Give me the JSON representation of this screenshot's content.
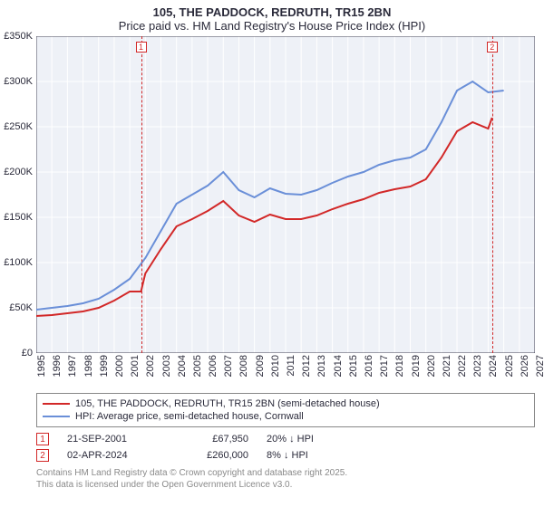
{
  "title": {
    "line1": "105, THE PADDOCK, REDRUTH, TR15 2BN",
    "line2": "Price paid vs. HM Land Registry's House Price Index (HPI)",
    "fontsize": 13,
    "color": "#2a2a3a"
  },
  "chart": {
    "type": "line",
    "background_color": "#eef1f7",
    "grid_color": "#ffffff",
    "border_color": "#444455",
    "x_years": [
      1995,
      1996,
      1997,
      1998,
      1999,
      2000,
      2001,
      2002,
      2003,
      2004,
      2005,
      2006,
      2007,
      2008,
      2009,
      2010,
      2011,
      2012,
      2013,
      2014,
      2015,
      2016,
      2017,
      2018,
      2019,
      2020,
      2021,
      2022,
      2023,
      2024,
      2025,
      2026,
      2027
    ],
    "x_domain": [
      1995,
      2027
    ],
    "y_ticks": [
      0,
      50000,
      100000,
      150000,
      200000,
      250000,
      300000,
      350000
    ],
    "y_tick_labels": [
      "£0",
      "£50K",
      "£100K",
      "£150K",
      "£200K",
      "£250K",
      "£300K",
      "£350K"
    ],
    "y_domain": [
      0,
      350000
    ],
    "label_fontsize": 11,
    "series": [
      {
        "name": "hpi",
        "label": "HPI: Average price, semi-detached house, Cornwall",
        "color": "#6a8fd8",
        "line_width": 2,
        "points": [
          [
            1995,
            48000
          ],
          [
            1996,
            50000
          ],
          [
            1997,
            52000
          ],
          [
            1998,
            55000
          ],
          [
            1999,
            60000
          ],
          [
            2000,
            70000
          ],
          [
            2001,
            82000
          ],
          [
            2002,
            105000
          ],
          [
            2003,
            135000
          ],
          [
            2004,
            165000
          ],
          [
            2005,
            175000
          ],
          [
            2006,
            185000
          ],
          [
            2007,
            200000
          ],
          [
            2008,
            180000
          ],
          [
            2009,
            172000
          ],
          [
            2010,
            182000
          ],
          [
            2011,
            176000
          ],
          [
            2012,
            175000
          ],
          [
            2013,
            180000
          ],
          [
            2014,
            188000
          ],
          [
            2015,
            195000
          ],
          [
            2016,
            200000
          ],
          [
            2017,
            208000
          ],
          [
            2018,
            213000
          ],
          [
            2019,
            216000
          ],
          [
            2020,
            225000
          ],
          [
            2021,
            255000
          ],
          [
            2022,
            290000
          ],
          [
            2023,
            300000
          ],
          [
            2024,
            288000
          ],
          [
            2025,
            290000
          ]
        ]
      },
      {
        "name": "price_paid",
        "label": "105, THE PADDOCK, REDRUTH, TR15 2BN (semi-detached house)",
        "color": "#d22828",
        "line_width": 2,
        "points": [
          [
            1995,
            41000
          ],
          [
            1996,
            42000
          ],
          [
            1997,
            44000
          ],
          [
            1998,
            46000
          ],
          [
            1999,
            50000
          ],
          [
            2000,
            58000
          ],
          [
            2001,
            68000
          ],
          [
            2001.72,
            67950
          ],
          [
            2002,
            88000
          ],
          [
            2003,
            115000
          ],
          [
            2004,
            140000
          ],
          [
            2005,
            148000
          ],
          [
            2006,
            157000
          ],
          [
            2007,
            168000
          ],
          [
            2008,
            152000
          ],
          [
            2009,
            145000
          ],
          [
            2010,
            153000
          ],
          [
            2011,
            148000
          ],
          [
            2012,
            148000
          ],
          [
            2013,
            152000
          ],
          [
            2014,
            159000
          ],
          [
            2015,
            165000
          ],
          [
            2016,
            170000
          ],
          [
            2017,
            177000
          ],
          [
            2018,
            181000
          ],
          [
            2019,
            184000
          ],
          [
            2020,
            192000
          ],
          [
            2021,
            216000
          ],
          [
            2022,
            245000
          ],
          [
            2023,
            255000
          ],
          [
            2024,
            248000
          ],
          [
            2024.25,
            260000
          ]
        ]
      }
    ],
    "markers": [
      {
        "num": "1",
        "color": "#d22828",
        "x": 2001.72,
        "date": "21-SEP-2001",
        "price": "£67,950",
        "diff": "20% ↓ HPI"
      },
      {
        "num": "2",
        "color": "#d22828",
        "x": 2024.25,
        "date": "02-APR-2024",
        "price": "£260,000",
        "diff": "8% ↓ HPI"
      }
    ]
  },
  "credits": {
    "line1": "Contains HM Land Registry data © Crown copyright and database right 2025.",
    "line2": "This data is licensed under the Open Government Licence v3.0."
  }
}
